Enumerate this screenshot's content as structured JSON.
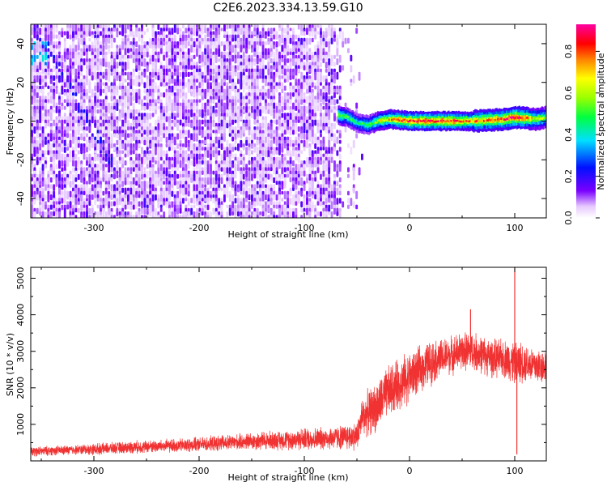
{
  "figure": {
    "title": "C2E6.2023.334.13.59.G10"
  },
  "colors": {
    "snr_line": "#f03232",
    "spectrogram_noise": "#6a00f0",
    "spectrogram_peak": "#ff1a1a"
  },
  "chart_data": [
    {
      "type": "heatmap",
      "xlabel": "Height of straight line (km)",
      "ylabel": "Frequency (Hz)",
      "xlim": [
        -360,
        130
      ],
      "ylim": [
        -50,
        50
      ],
      "xticks": [
        -300,
        -200,
        -100,
        0,
        100
      ],
      "yticks": [
        -40,
        -20,
        0,
        20,
        40
      ],
      "colorbar": {
        "label": "Normalized spectral amplitude",
        "range": [
          0.0,
          0.93
        ],
        "ticks": [
          0.0,
          0.2,
          0.4,
          0.6,
          0.8
        ],
        "colormap": "rainbow (white-violet-blue-cyan-green-yellow-red-magenta)"
      },
      "noise_region": {
        "x_range": [
          -360,
          -40
        ],
        "typical_amplitude": 0.1
      },
      "carrier": {
        "x_range": [
          -70,
          130
        ],
        "frequency_hz": 0,
        "points": [
          {
            "x": -68,
            "freq": 3,
            "amp": 0.55
          },
          {
            "x": -60,
            "freq": 2,
            "amp": 0.5
          },
          {
            "x": -50,
            "freq": -1,
            "amp": 0.45
          },
          {
            "x": -40,
            "freq": -2,
            "amp": 0.5
          },
          {
            "x": -30,
            "freq": 0,
            "amp": 0.6
          },
          {
            "x": -20,
            "freq": 1,
            "amp": 0.7
          },
          {
            "x": 0,
            "freq": 0,
            "amp": 0.85
          },
          {
            "x": 30,
            "freq": 0,
            "amp": 0.85
          },
          {
            "x": 60,
            "freq": 0,
            "amp": 0.75
          },
          {
            "x": 90,
            "freq": 1,
            "amp": 0.8
          },
          {
            "x": 100,
            "freq": 2,
            "amp": 0.9
          },
          {
            "x": 120,
            "freq": 1,
            "amp": 0.6
          },
          {
            "x": 130,
            "freq": 2,
            "amp": 0.55
          }
        ]
      }
    },
    {
      "type": "line",
      "xlabel": "Height of straight line (km)",
      "ylabel": "SNR (10 * v/v)",
      "xlim": [
        -360,
        130
      ],
      "ylim": [
        0,
        5300
      ],
      "xticks": [
        -300,
        -200,
        -100,
        0,
        100
      ],
      "yticks": [
        1000,
        2000,
        3000,
        4000,
        5000
      ],
      "series": [
        {
          "x": [
            -360,
            -340,
            -320,
            -300,
            -280,
            -260,
            -240,
            -220,
            -200,
            -180,
            -160,
            -140,
            -120,
            -100,
            -80,
            -60,
            -50,
            -45,
            -40,
            -30,
            -20,
            -10,
            0,
            10,
            20,
            30,
            40,
            50,
            60,
            70,
            80,
            90,
            100,
            110,
            120,
            130
          ],
          "values": [
            250,
            280,
            300,
            320,
            350,
            380,
            400,
            420,
            450,
            480,
            520,
            550,
            570,
            600,
            620,
            650,
            680,
            1200,
            1300,
            1500,
            1900,
            2100,
            2300,
            2500,
            2700,
            2800,
            2900,
            3000,
            3000,
            2900,
            2800,
            2800,
            2700,
            2700,
            2600,
            2600
          ],
          "spread": [
            150,
            150,
            150,
            180,
            180,
            200,
            200,
            220,
            220,
            250,
            250,
            300,
            300,
            350,
            350,
            400,
            450,
            600,
            700,
            800,
            800,
            800,
            800,
            700,
            700,
            600,
            600,
            600,
            600,
            600,
            600,
            600,
            700,
            600,
            600,
            500
          ],
          "spikes": [
            {
              "x": 58,
              "value": 4150
            },
            {
              "x": 100,
              "value": 5300
            },
            {
              "x": 102,
              "value": 180
            }
          ]
        }
      ]
    }
  ]
}
